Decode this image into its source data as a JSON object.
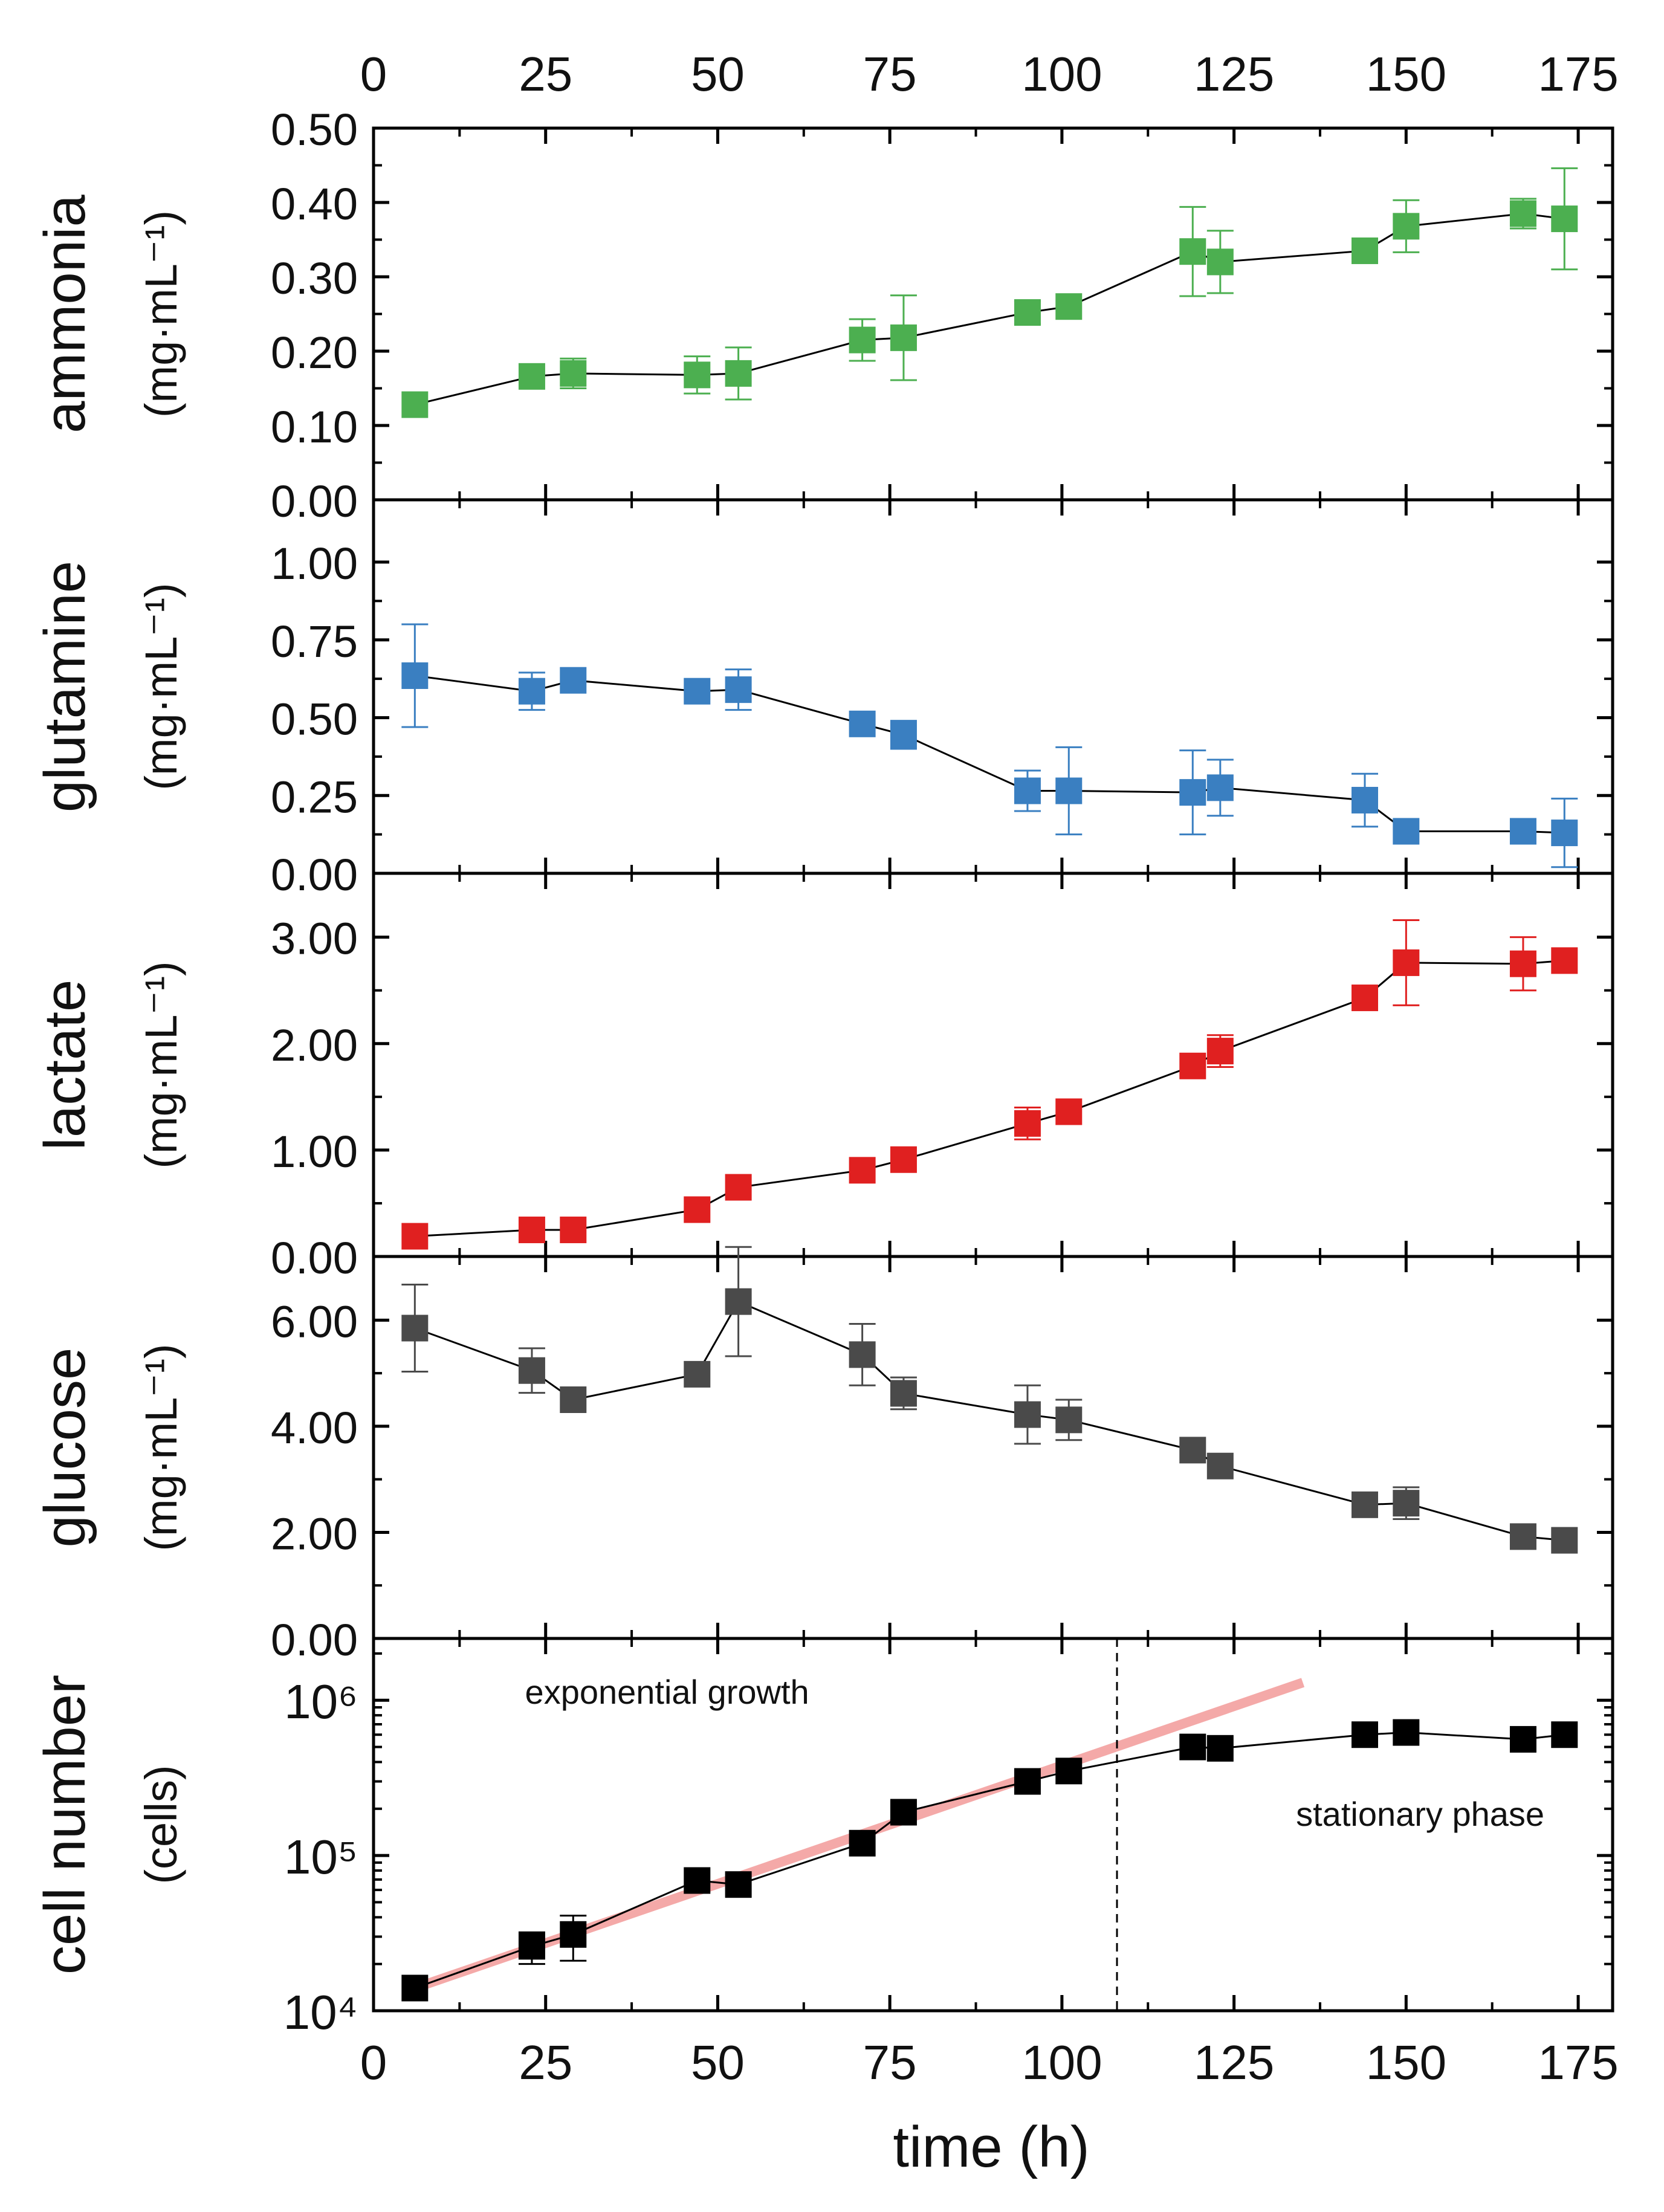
{
  "figure": {
    "xlabel": "time (h)",
    "xticks": [
      "0",
      "25",
      "50",
      "75",
      "100",
      "125",
      "150",
      "175"
    ],
    "xlim": [
      0,
      180
    ],
    "colors": {
      "frame": "#000000",
      "connector": "#000000",
      "fit": "#f4a9a8",
      "divider": "#000000"
    }
  },
  "chart_data": [
    {
      "type": "scatter",
      "panel": "ammonia",
      "ylabel": "ammonia",
      "yunit": "(mg·mL⁻¹)",
      "ylim": [
        0,
        0.5
      ],
      "yticks": [
        "0.00",
        "0.10",
        "0.20",
        "0.30",
        "0.40",
        "0.50"
      ],
      "color": "#4caf50",
      "x": [
        6,
        23,
        29,
        47,
        53,
        71,
        77,
        95,
        101,
        119,
        123,
        144,
        150,
        167,
        173
      ],
      "y": [
        0.128,
        0.166,
        0.17,
        0.168,
        0.17,
        0.215,
        0.218,
        0.252,
        0.26,
        0.334,
        0.32,
        0.335,
        0.368,
        0.385,
        0.378
      ],
      "err": [
        0,
        0,
        0.02,
        0.025,
        0.035,
        0.028,
        0.057,
        0.015,
        0.0,
        0.06,
        0.042,
        0.0,
        0.035,
        0.02,
        0.068
      ]
    },
    {
      "type": "scatter",
      "panel": "glutamine",
      "ylabel": "glutamine",
      "yunit": "(mg·mL⁻¹)",
      "ylim": [
        0,
        1.2
      ],
      "yticks": [
        "0.00",
        "0.25",
        "0.50",
        "0.75",
        "1.00"
      ],
      "color": "#3a7fc1",
      "x": [
        6,
        23,
        29,
        47,
        53,
        71,
        77,
        95,
        101,
        119,
        123,
        144,
        150,
        167,
        173
      ],
      "y": [
        0.635,
        0.585,
        0.62,
        0.585,
        0.59,
        0.48,
        0.445,
        0.265,
        0.265,
        0.26,
        0.275,
        0.235,
        0.135,
        0.135,
        0.13
      ],
      "err": [
        0.165,
        0.06,
        0.0,
        0.0,
        0.065,
        0.0,
        0.045,
        0.065,
        0.14,
        0.135,
        0.09,
        0.085,
        0.0,
        0.0,
        0.11
      ]
    },
    {
      "type": "scatter",
      "panel": "lactate",
      "ylabel": "lactate",
      "yunit": "(mg·mL⁻¹)",
      "ylim": [
        0,
        3.6
      ],
      "yticks": [
        "0.00",
        "1.00",
        "2.00",
        "3.00"
      ],
      "color": "#e02020",
      "x": [
        6,
        23,
        29,
        47,
        53,
        71,
        77,
        95,
        101,
        119,
        123,
        144,
        150,
        167,
        173
      ],
      "y": [
        0.19,
        0.25,
        0.25,
        0.44,
        0.65,
        0.81,
        0.91,
        1.25,
        1.36,
        1.79,
        1.93,
        2.43,
        2.76,
        2.75,
        2.78
      ],
      "err": [
        0,
        0,
        0,
        0,
        0,
        0,
        0,
        0.15,
        0,
        0,
        0.15,
        0,
        0.4,
        0.25,
        0
      ]
    },
    {
      "type": "scatter",
      "panel": "glucose",
      "ylabel": "glucose",
      "yunit": "(mg·mL⁻¹)",
      "ylim": [
        0,
        7.2
      ],
      "yticks": [
        "0.00",
        "2.00",
        "4.00",
        "6.00"
      ],
      "color": "#4a4a4a",
      "x": [
        6,
        23,
        29,
        47,
        53,
        71,
        77,
        95,
        101,
        119,
        123,
        144,
        150,
        167,
        173
      ],
      "y": [
        5.85,
        5.05,
        4.5,
        4.98,
        6.35,
        5.35,
        4.62,
        4.22,
        4.12,
        3.55,
        3.25,
        2.52,
        2.55,
        1.92,
        1.85
      ],
      "err": [
        0.82,
        0.42,
        0,
        0,
        1.03,
        0.58,
        0.3,
        0.55,
        0.38,
        0,
        0,
        0,
        0.3,
        0,
        0
      ]
    },
    {
      "type": "scatter",
      "panel": "cell number",
      "ylabel": "cell number",
      "yunit": "(cells)",
      "yscale": "log",
      "ylim": [
        10000,
        2500000
      ],
      "yticks": [
        "10⁴",
        "10⁵",
        "10⁶"
      ],
      "color": "#000000",
      "x": [
        6,
        23,
        29,
        47,
        53,
        71,
        77,
        95,
        101,
        119,
        123,
        144,
        150,
        167,
        173
      ],
      "y": [
        14000,
        26000,
        31000,
        69000,
        65000,
        120000,
        190000,
        300000,
        350000,
        500000,
        490000,
        600000,
        620000,
        560000,
        600000
      ],
      "err_low": [
        0,
        6000,
        10000,
        0,
        0,
        0,
        0,
        0,
        0,
        0,
        0,
        0,
        0,
        0,
        0
      ],
      "err_high": [
        0,
        6000,
        10000,
        0,
        0,
        0,
        0,
        0,
        0,
        0,
        0,
        0,
        0,
        0,
        0
      ],
      "fit_line": {
        "x": [
          6,
          135
        ],
        "y": [
          14000,
          1300000
        ]
      },
      "phase_divider_x": 108,
      "annotations": [
        {
          "text": "exponential growth",
          "x": 22,
          "y": 950000
        },
        {
          "text": "stationary phase",
          "x": 134,
          "y": 155000
        }
      ]
    }
  ]
}
